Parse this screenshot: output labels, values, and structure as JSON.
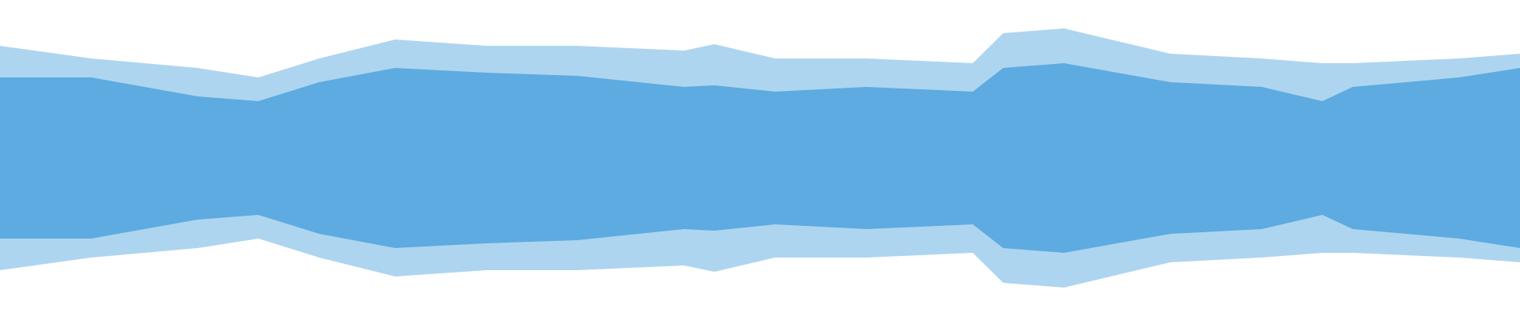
{
  "chart_data": {
    "type": "waveform",
    "x": [
      0,
      6,
      13,
      17,
      21,
      26,
      32,
      38,
      45,
      47,
      51,
      57,
      64,
      66,
      70,
      77,
      83,
      87,
      89,
      96,
      100
    ],
    "xlim": [
      0,
      100
    ],
    "ylim": [
      -1,
      1
    ],
    "series": [
      {
        "color": "#5dabe0",
        "values": [
          0.71,
          0.63,
          0.57,
          0.51,
          0.63,
          0.75,
          0.71,
          0.71,
          0.68,
          0.72,
          0.63,
          0.63,
          0.6,
          0.79,
          0.82,
          0.66,
          0.63,
          0.6,
          0.6,
          0.63,
          0.66
        ]
      },
      {
        "color": "#5dabe0",
        "values": [
          0.51,
          0.51,
          0.39,
          0.36,
          0.48,
          0.57,
          0.54,
          0.52,
          0.45,
          0.46,
          0.42,
          0.45,
          0.42,
          0.57,
          0.6,
          0.48,
          0.45,
          0.36,
          0.45,
          0.51,
          0.57
        ]
      }
    ]
  }
}
